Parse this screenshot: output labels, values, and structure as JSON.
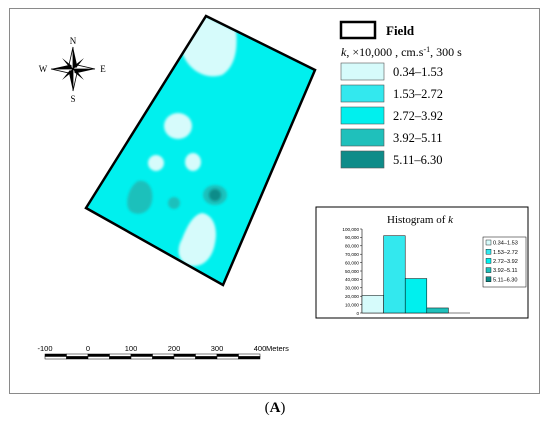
{
  "compass": {
    "n": "N",
    "e": "E",
    "s": "S",
    "w": "W",
    "icon": "compass-rose-icon"
  },
  "legend": {
    "field_label": "Field",
    "title_prefix": "k",
    "title_main": ", ×10,000 , cm.s",
    "title_sup": "-1",
    "title_suffix": ", 300 s",
    "classes": [
      {
        "label": "0.34–1.53",
        "color": "#d6fbfb"
      },
      {
        "label": "1.53–2.72",
        "color": "#33e8ee"
      },
      {
        "label": "2.72–3.92",
        "color": "#00f0ee"
      },
      {
        "label": "3.92–5.11",
        "color": "#1fc0bb"
      },
      {
        "label": "5.11–6.30",
        "color": "#0e8c89"
      }
    ]
  },
  "histogram": {
    "title_prefix": "Histogram of ",
    "title_var": "k",
    "chart_data": {
      "type": "bar",
      "categories": [
        "0.34–1.53",
        "1.53–2.72",
        "2.72–3.92",
        "3.92–5.11",
        "5.11–6.30"
      ],
      "values": [
        21000,
        92000,
        41000,
        6000,
        0
      ],
      "ylim": [
        0,
        100000
      ],
      "yticks": [
        "0",
        "10,000",
        "20,000",
        "30,000",
        "40,000",
        "50,000",
        "60,000",
        "70,000",
        "80,000",
        "90,000",
        "100,000"
      ],
      "legend_placement": "right"
    }
  },
  "scale_bar": {
    "ticks": [
      "-100",
      "0",
      "100",
      "200",
      "300",
      "400"
    ],
    "unit": "Meters"
  },
  "panel_label": {
    "open": "(",
    "letter": "A",
    "close": ")"
  }
}
